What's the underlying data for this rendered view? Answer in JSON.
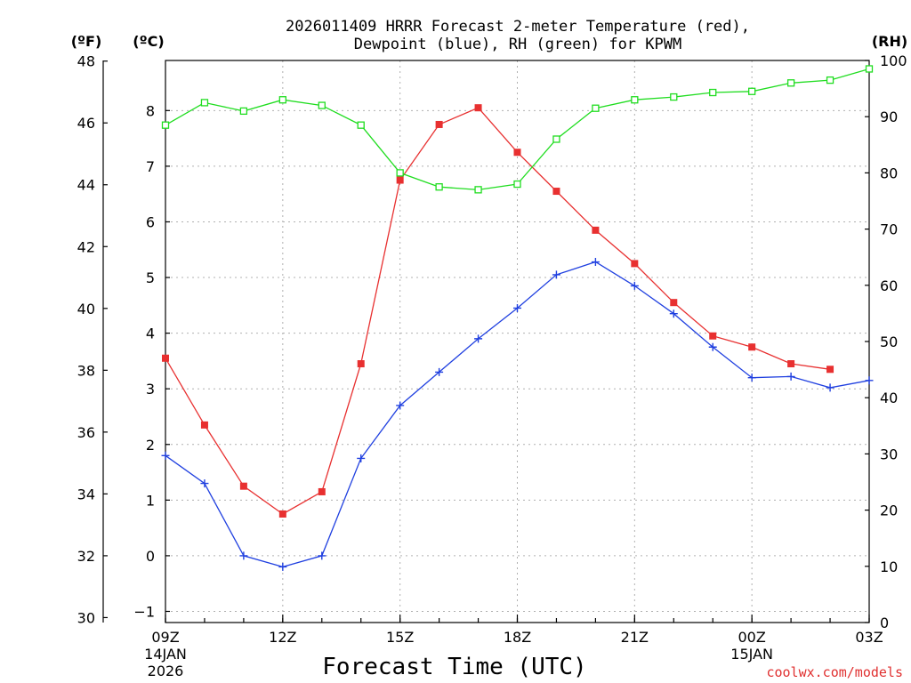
{
  "chart_data": {
    "type": "line",
    "title_line1": "2026011409 HRRR Forecast 2-meter Temperature (red),",
    "title_line2": "Dewpoint (blue), RH (green) for KPWM",
    "xlabel": "Forecast Time (UTC)",
    "credit": "coolwx.com/models",
    "units": {
      "fahrenheit": "(ºF)",
      "celsius": "(ºC)",
      "rh": "(RH)"
    },
    "x_hours": [
      0,
      1,
      2,
      3,
      4,
      5,
      6,
      7,
      8,
      9,
      10,
      11,
      12,
      13,
      14,
      15,
      16,
      17,
      18
    ],
    "x_ticks": [
      {
        "hour": 0,
        "label": "09Z",
        "sub1": "14JAN",
        "sub2": "2026"
      },
      {
        "hour": 3,
        "label": "12Z",
        "sub1": "",
        "sub2": ""
      },
      {
        "hour": 6,
        "label": "15Z",
        "sub1": "",
        "sub2": ""
      },
      {
        "hour": 9,
        "label": "18Z",
        "sub1": "",
        "sub2": ""
      },
      {
        "hour": 12,
        "label": "21Z",
        "sub1": "",
        "sub2": ""
      },
      {
        "hour": 15,
        "label": "00Z",
        "sub1": "15JAN",
        "sub2": ""
      },
      {
        "hour": 18,
        "label": "03Z",
        "sub1": "",
        "sub2": ""
      }
    ],
    "xlim": [
      0,
      18
    ],
    "celsius_axis": {
      "ylim": [
        -1.2,
        8.9
      ],
      "ticks": [
        -1,
        0,
        1,
        2,
        3,
        4,
        5,
        6,
        7,
        8
      ]
    },
    "fahrenheit_axis": {
      "ylim": [
        29.84,
        48.02
      ],
      "ticks": [
        30,
        32,
        34,
        36,
        38,
        40,
        42,
        44,
        46,
        48
      ]
    },
    "rh_axis": {
      "ylim": [
        0,
        100
      ],
      "ticks": [
        0,
        10,
        20,
        30,
        40,
        50,
        60,
        70,
        80,
        90,
        100
      ]
    },
    "series": [
      {
        "name": "Temperature",
        "axis": "celsius",
        "color": "#e83030",
        "marker": "filled-square",
        "values": [
          3.55,
          2.35,
          1.25,
          0.75,
          1.15,
          3.45,
          6.75,
          7.75,
          8.05,
          7.25,
          6.55,
          5.85,
          5.25,
          4.55,
          3.95,
          3.75,
          3.45,
          3.35,
          null
        ]
      },
      {
        "name": "Dewpoint",
        "axis": "celsius",
        "color": "#2040e0",
        "marker": "plus",
        "values": [
          1.8,
          1.3,
          0.0,
          -0.2,
          0.0,
          1.75,
          2.7,
          3.3,
          3.9,
          4.45,
          5.05,
          5.28,
          4.85,
          4.35,
          3.75,
          3.2,
          3.22,
          3.02,
          3.15
        ]
      },
      {
        "name": "RH",
        "axis": "rh",
        "color": "#20dd20",
        "marker": "open-square",
        "values": [
          88.5,
          92.5,
          91.0,
          93.0,
          92.0,
          88.5,
          80.0,
          77.5,
          77.0,
          78.0,
          86.0,
          91.5,
          93.0,
          93.5,
          94.3,
          94.5,
          96.0,
          96.5,
          98.5
        ]
      }
    ]
  }
}
